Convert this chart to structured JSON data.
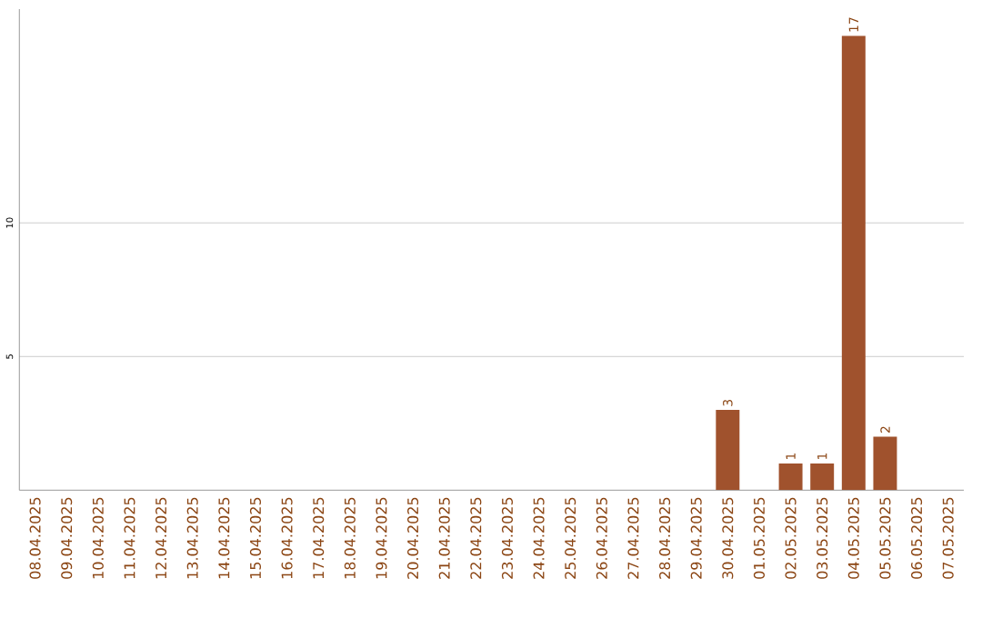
{
  "chart_data": {
    "type": "bar",
    "categories": [
      "08.04.2025",
      "09.04.2025",
      "10.04.2025",
      "11.04.2025",
      "12.04.2025",
      "13.04.2025",
      "14.04.2025",
      "15.04.2025",
      "16.04.2025",
      "17.04.2025",
      "18.04.2025",
      "19.04.2025",
      "20.04.2025",
      "21.04.2025",
      "22.04.2025",
      "23.04.2025",
      "24.04.2025",
      "25.04.2025",
      "26.04.2025",
      "27.04.2025",
      "28.04.2025",
      "29.04.2025",
      "30.04.2025",
      "01.05.2025",
      "02.05.2025",
      "03.05.2025",
      "04.05.2025",
      "05.05.2025",
      "06.05.2025",
      "07.05.2025"
    ],
    "values": [
      0,
      0,
      0,
      0,
      0,
      0,
      0,
      0,
      0,
      0,
      0,
      0,
      0,
      0,
      0,
      0,
      0,
      0,
      0,
      0,
      0,
      0,
      3,
      0,
      1,
      1,
      17,
      2,
      0,
      0
    ],
    "value_labels": [
      null,
      null,
      null,
      null,
      null,
      null,
      null,
      null,
      null,
      null,
      null,
      null,
      null,
      null,
      null,
      null,
      null,
      null,
      null,
      null,
      null,
      null,
      "3",
      null,
      "1",
      "1",
      "17",
      "2",
      null,
      null
    ],
    "color": "#a0522d",
    "ylim": [
      0,
      18
    ],
    "yticks": [
      5,
      10
    ],
    "grid": "y"
  }
}
